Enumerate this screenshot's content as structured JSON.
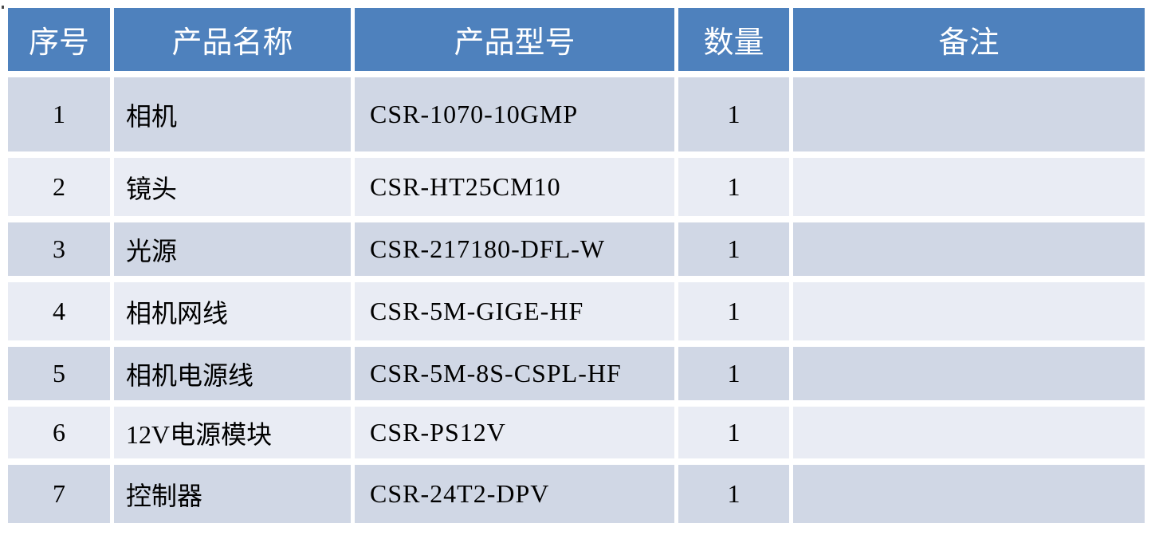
{
  "colors": {
    "header_bg": "#4E81BD",
    "header_text": "#FFFFFF",
    "row_odd_bg": "#D0D7E5",
    "row_even_bg": "#E9ECF4",
    "body_text": "#000000",
    "page_bg": "#FFFFFF"
  },
  "table": {
    "columns": [
      {
        "key": "index",
        "label": "序号"
      },
      {
        "key": "name",
        "label": "产品名称"
      },
      {
        "key": "model",
        "label": "产品型号"
      },
      {
        "key": "qty",
        "label": "数量"
      },
      {
        "key": "remark",
        "label": "备注"
      }
    ],
    "rows": [
      {
        "index": "1",
        "name": "相机",
        "model": "CSR-1070-10GMP",
        "qty": "1",
        "remark": ""
      },
      {
        "index": "2",
        "name": "镜头",
        "model": "CSR-HT25CM10",
        "qty": "1",
        "remark": ""
      },
      {
        "index": "3",
        "name": "光源",
        "model": "CSR-217180-DFL-W",
        "qty": "1",
        "remark": ""
      },
      {
        "index": "4",
        "name": "相机网线",
        "model": "CSR-5M-GIGE-HF",
        "qty": "1",
        "remark": ""
      },
      {
        "index": "5",
        "name": "相机电源线",
        "model": "CSR-5M-8S-CSPL-HF",
        "qty": "1",
        "remark": ""
      },
      {
        "index": "6",
        "name": "12V电源模块",
        "model": "CSR-PS12V",
        "qty": "1",
        "remark": ""
      },
      {
        "index": "7",
        "name": "控制器",
        "model": "CSR-24T2-DPV",
        "qty": "1",
        "remark": ""
      }
    ]
  }
}
